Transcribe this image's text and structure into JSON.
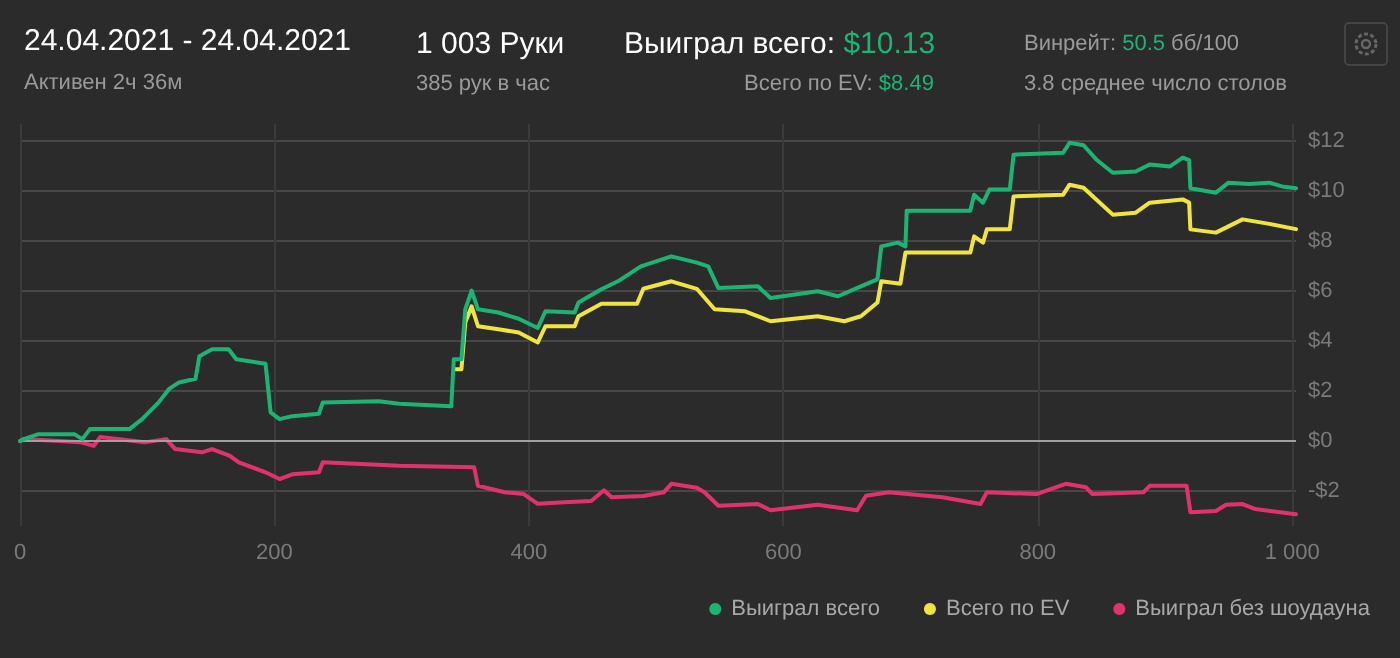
{
  "chart_data": {
    "type": "line",
    "title": "24.04.2021 - 24.04.2021",
    "subtitle": "Активен 2ч 36м",
    "annotations": [
      "1 003 Руки",
      "385 рук в час",
      "Выиграл всего: $10.13",
      "Всего по EV: $8.49",
      "Винрейт: 50.5 бб/100",
      "3.8 среднее число столов"
    ],
    "series": [
      {
        "name": "Выиграл всего",
        "color": "#1db374",
        "x": [
          0,
          3,
          14,
          43,
          49,
          55,
          86,
          96,
          109,
          117,
          125,
          138,
          141,
          151,
          164,
          170,
          193,
          197,
          204,
          214,
          235,
          238,
          282,
          298,
          339,
          341,
          347,
          350,
          355,
          360,
          376,
          392,
          407,
          413,
          436,
          439,
          457,
          470,
          488,
          512,
          532,
          541,
          549,
          580,
          590,
          627,
          643,
          661,
          674,
          677,
          690,
          696,
          697,
          747,
          750,
          757,
          762,
          778,
          781,
          820,
          825,
          836,
          846,
          859,
          877,
          888,
          904,
          914,
          919,
          920,
          940,
          950,
          966,
          982,
          992,
          1003
        ],
        "values": [
          0,
          0.08,
          0.27,
          0.27,
          0.08,
          0.48,
          0.48,
          0.88,
          1.55,
          2.08,
          2.35,
          2.5,
          3.4,
          3.68,
          3.68,
          3.28,
          3.1,
          1.15,
          0.88,
          1.0,
          1.1,
          1.55,
          1.6,
          1.5,
          1.4,
          3.28,
          3.28,
          5.28,
          6.03,
          5.28,
          5.15,
          4.9,
          4.53,
          5.2,
          5.15,
          5.55,
          6.08,
          6.4,
          7.0,
          7.4,
          7.15,
          7.0,
          6.13,
          6.2,
          5.73,
          6.0,
          5.8,
          6.2,
          6.48,
          7.8,
          7.95,
          7.8,
          9.23,
          9.23,
          9.87,
          9.55,
          10.08,
          10.08,
          11.47,
          11.55,
          11.95,
          11.85,
          11.28,
          10.75,
          10.8,
          11.08,
          11.0,
          11.35,
          11.25,
          10.13,
          9.95,
          10.35,
          10.3,
          10.35,
          10.2,
          10.13
        ]
      },
      {
        "name": "Всего по EV",
        "color": "#f0e442",
        "x": [
          341,
          347,
          350,
          355,
          360,
          376,
          392,
          407,
          413,
          436,
          439,
          457,
          485,
          490,
          512,
          532,
          546,
          570,
          590,
          627,
          648,
          661,
          674,
          677,
          692,
          696,
          747,
          750,
          757,
          760,
          778,
          781,
          820,
          825,
          836,
          846,
          859,
          877,
          888,
          914,
          919,
          920,
          940,
          961,
          982,
          1003
        ],
        "values": [
          2.88,
          2.88,
          4.75,
          5.4,
          4.6,
          4.48,
          4.35,
          3.95,
          4.6,
          4.6,
          5.0,
          5.5,
          5.5,
          6.1,
          6.4,
          6.1,
          5.28,
          5.2,
          4.8,
          5.0,
          4.8,
          5.0,
          5.55,
          6.4,
          6.3,
          7.55,
          7.55,
          8.2,
          7.95,
          8.48,
          8.48,
          9.8,
          9.87,
          10.27,
          10.15,
          9.68,
          9.07,
          9.15,
          9.55,
          9.68,
          9.55,
          8.48,
          8.35,
          8.88,
          8.7,
          8.49
        ]
      },
      {
        "name": "Выиграл без шоудауна",
        "color": "#e0336e",
        "x": [
          0,
          3,
          48,
          58,
          63,
          98,
          115,
          122,
          143,
          151,
          165,
          172,
          193,
          204,
          214,
          235,
          238,
          298,
          357,
          360,
          381,
          396,
          407,
          428,
          449,
          459,
          465,
          490,
          506,
          512,
          532,
          538,
          549,
          580,
          590,
          627,
          658,
          665,
          683,
          725,
          755,
          760,
          799,
          822,
          838,
          843,
          883,
          888,
          917,
          920,
          940,
          948,
          961,
          971,
          1003
        ],
        "values": [
          0,
          0.08,
          -0.05,
          -0.19,
          0.16,
          -0.05,
          0.08,
          -0.32,
          -0.45,
          -0.32,
          -0.59,
          -0.85,
          -1.25,
          -1.52,
          -1.33,
          -1.25,
          -0.85,
          -0.99,
          -1.05,
          -1.79,
          -2.05,
          -2.12,
          -2.51,
          -2.45,
          -2.4,
          -1.97,
          -2.25,
          -2.2,
          -2.05,
          -1.71,
          -1.87,
          -2.05,
          -2.59,
          -2.52,
          -2.77,
          -2.55,
          -2.77,
          -2.19,
          -2.05,
          -2.25,
          -2.52,
          -2.05,
          -2.12,
          -1.71,
          -1.85,
          -2.12,
          -2.05,
          -1.79,
          -1.79,
          -2.85,
          -2.8,
          -2.55,
          -2.52,
          -2.72,
          -2.93
        ]
      }
    ],
    "xlim": [
      0,
      1003
    ],
    "xticks": [
      0,
      200,
      400,
      600,
      800,
      {
        "value": 1000,
        "label": "1 000"
      }
    ],
    "ylim": [
      -3.4,
      12.7
    ],
    "yticks": [
      {
        "value": -2,
        "label": "-$2"
      },
      {
        "value": 0,
        "label": "$0"
      },
      {
        "value": 2,
        "label": "$2"
      },
      {
        "value": 4,
        "label": "$4"
      },
      {
        "value": 6,
        "label": "$6"
      },
      {
        "value": 8,
        "label": "$8"
      },
      {
        "value": 10,
        "label": "$10"
      },
      {
        "value": 12,
        "label": "$12"
      }
    ],
    "ref_lines": [
      {
        "axis": "y",
        "value": 0,
        "color": "#a0a0a0"
      }
    ],
    "grid": true,
    "legend": "bottom right",
    "marker": "none",
    "line_style": "solid"
  }
}
